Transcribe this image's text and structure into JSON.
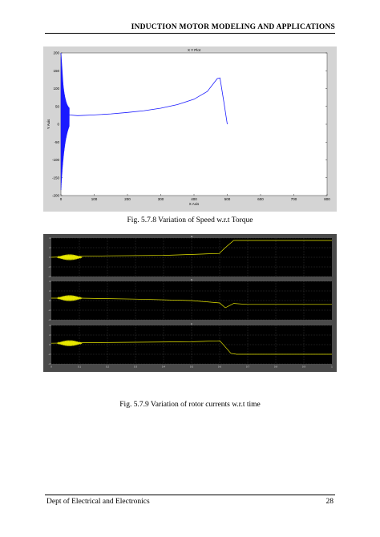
{
  "header": {
    "title": "INDUCTION MOTOR MODELING AND APPLICATIONS"
  },
  "figure1": {
    "caption": "Fig. 5.7.8 Variation of Speed w.r.t Torque",
    "chart_data": {
      "type": "line",
      "title": "X Y Plot",
      "xlabel": "X Axis",
      "ylabel": "Y Axis",
      "xlim": [
        0,
        800
      ],
      "ylim": [
        -200,
        200
      ],
      "xticks": [
        "0",
        "100",
        "200",
        "300",
        "400",
        "500",
        "600",
        "700",
        "800"
      ],
      "yticks": [
        "200",
        "150",
        "100",
        "50",
        "0",
        "-50",
        "-100",
        "-150",
        "-200"
      ],
      "grid": false,
      "line_color": "#1a1aff",
      "series": [
        {
          "x": [
            0,
            10,
            25,
            50,
            100,
            150,
            200,
            250,
            300,
            350,
            400,
            440,
            470,
            478,
            490,
            500
          ],
          "y": [
            200,
            60,
            26,
            24,
            26,
            29,
            33,
            38,
            45,
            55,
            70,
            92,
            128,
            130,
            60,
            0
          ]
        }
      ],
      "oscillation_band": {
        "x": [
          0,
          25
        ],
        "y_envelope_max": [
          200,
          20
        ],
        "y_envelope_min": [
          -200,
          20
        ]
      }
    }
  },
  "figure2": {
    "caption": "Fig. 5.7.9 Variation of rotor currents w.r.t time",
    "background": "#000000",
    "trace_color": "#e8e800",
    "chart_data": [
      {
        "type": "line",
        "panel_title": "Ia",
        "xlim": [
          0,
          1
        ],
        "ylim": [
          -4,
          4
        ],
        "yticks": [
          "4",
          "2",
          "0",
          "-2",
          "-4"
        ],
        "series": [
          {
            "x": [
              0,
              0.1,
              0.2,
              0.4,
              0.6,
              0.6,
              0.62,
              0.65,
              1.0
            ],
            "y": [
              0,
              0.2,
              0.3,
              0.4,
              0.8,
              0.9,
              2,
              3.5,
              3.5
            ]
          }
        ]
      },
      {
        "type": "line",
        "panel_title": "Ib",
        "xlim": [
          0,
          1
        ],
        "ylim": [
          -4,
          4
        ],
        "yticks": [
          "4",
          "2",
          "0",
          "-2",
          "-4"
        ],
        "series": [
          {
            "x": [
              0,
              0.1,
              0.3,
              0.5,
              0.6,
              0.62,
              0.65,
              0.7,
              1.0
            ],
            "y": [
              0.5,
              0.5,
              0.3,
              0.0,
              -0.5,
              -1.5,
              -0.6,
              -0.8,
              -0.8
            ]
          }
        ]
      },
      {
        "type": "line",
        "panel_title": "Ic",
        "xlim": [
          0,
          1
        ],
        "ylim": [
          -4,
          4
        ],
        "yticks": [
          "4",
          "2",
          "0",
          "-2",
          "-4"
        ],
        "xticks": [
          "0",
          "0.1",
          "0.2",
          "0.3",
          "0.4",
          "0.5",
          "0.6",
          "0.7",
          "0.8",
          "0.9",
          "1"
        ],
        "series": [
          {
            "x": [
              0,
              0.1,
              0.3,
              0.5,
              0.6,
              0.61,
              0.64,
              0.66,
              1.0
            ],
            "y": [
              0.3,
              0.4,
              0.5,
              0.6,
              0.8,
              0.2,
              -1.8,
              -2.0,
              -2.0
            ]
          }
        ]
      }
    ]
  },
  "footer": {
    "left": "Dept of Electrical and Electronics",
    "page": "28"
  }
}
